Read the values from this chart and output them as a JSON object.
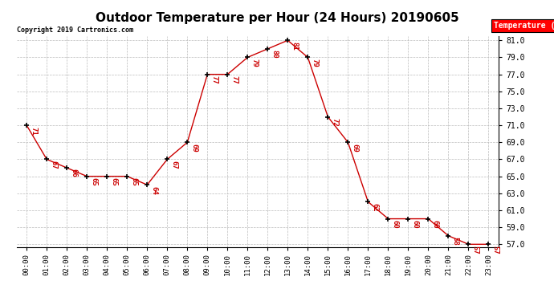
{
  "title": "Outdoor Temperature per Hour (24 Hours) 20190605",
  "copyright_text": "Copyright 2019 Cartronics.com",
  "legend_label": "Temperature (°F)",
  "hours": [
    0,
    1,
    2,
    3,
    4,
    5,
    6,
    7,
    8,
    9,
    10,
    11,
    12,
    13,
    14,
    15,
    16,
    17,
    18,
    19,
    20,
    21,
    22,
    23
  ],
  "temperatures": [
    71,
    67,
    66,
    65,
    65,
    65,
    64,
    67,
    69,
    77,
    77,
    79,
    80,
    81,
    79,
    72,
    69,
    62,
    60,
    60,
    60,
    58,
    57,
    57
  ],
  "line_color": "#cc0000",
  "marker_color": "#000000",
  "background_color": "#ffffff",
  "grid_color": "#bbbbbb",
  "ylim_min": 57.0,
  "ylim_max": 81.0,
  "ytick_step": 2.0,
  "title_fontsize": 11,
  "annotation_color": "#cc0000",
  "annotation_fontsize": 6.5,
  "tick_fontsize": 6.5,
  "ytick_fontsize": 7.0
}
